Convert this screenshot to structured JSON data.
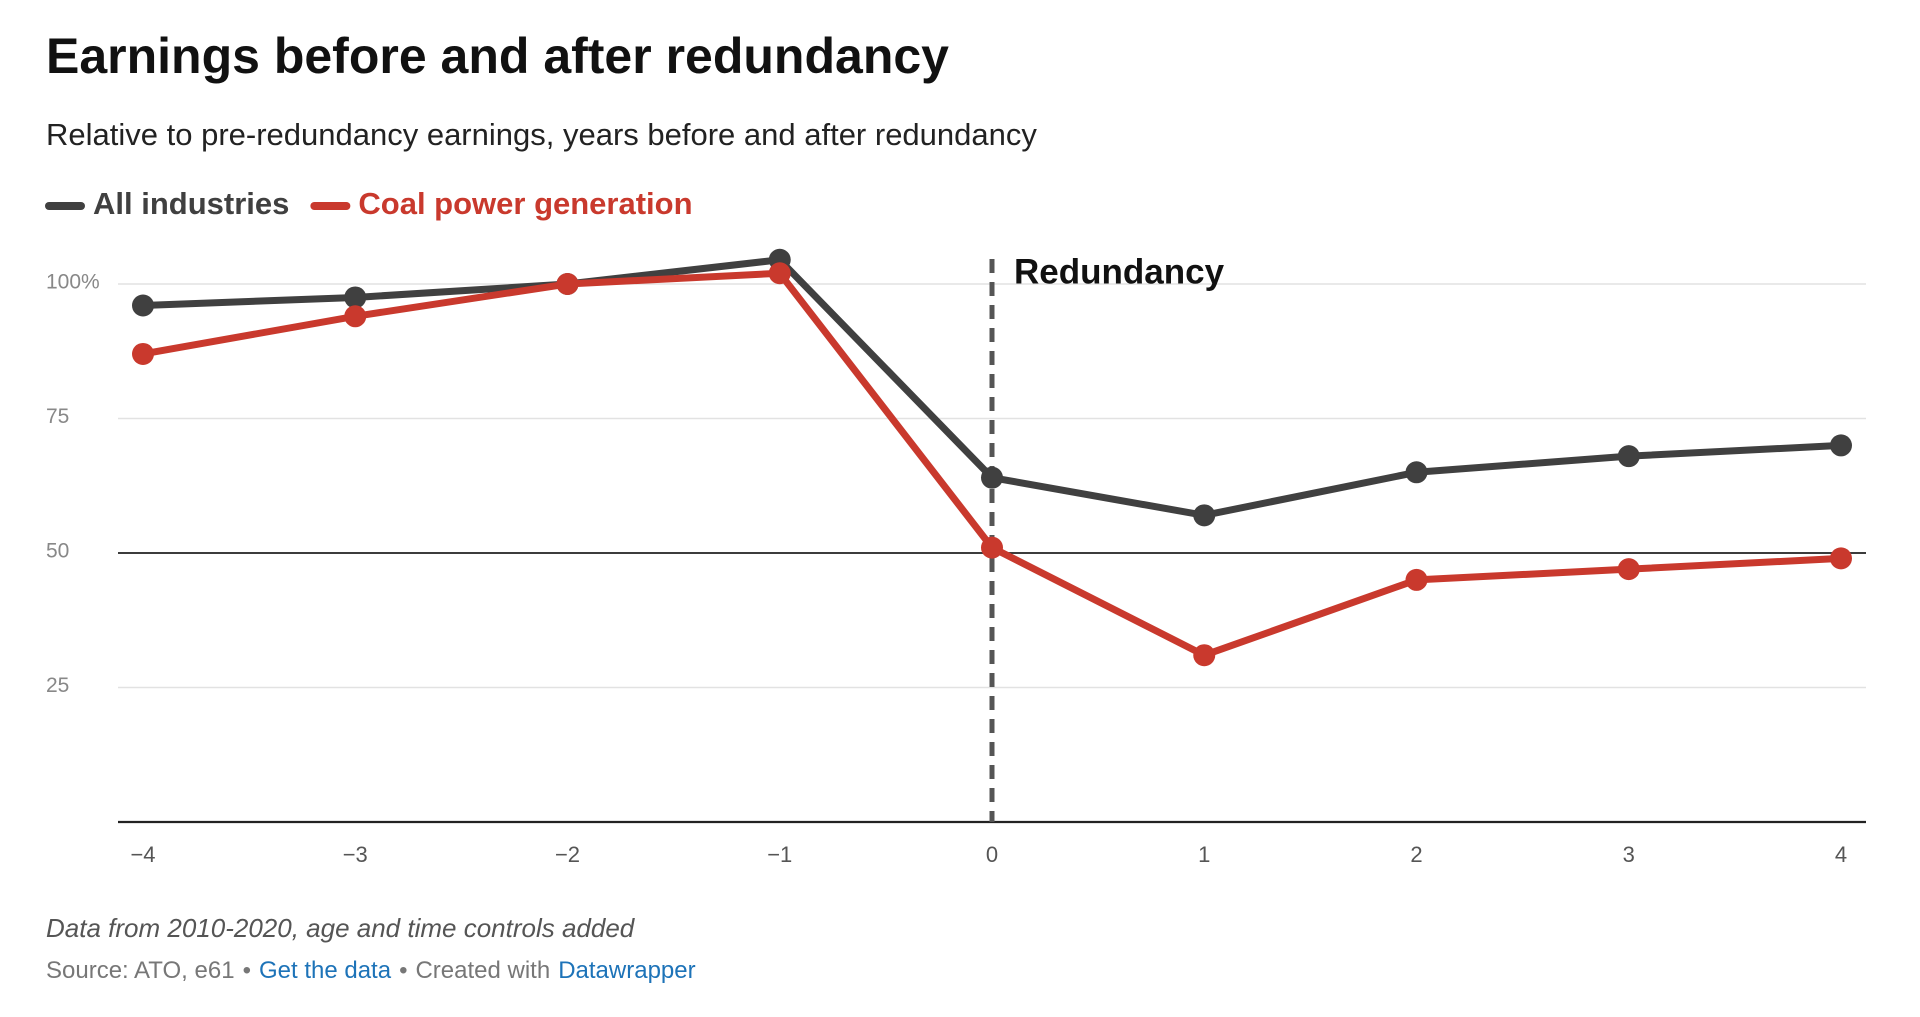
{
  "chart_data": {
    "type": "line",
    "title": "Earnings before and after redundancy",
    "subtitle": "Relative to pre-redundancy earnings, years before and after redundancy",
    "x": [
      -4,
      -3,
      -2,
      -1,
      0,
      1,
      2,
      3,
      4
    ],
    "xlim": [
      -4,
      4
    ],
    "xticks": [
      {
        "value": -4,
        "label": "−4"
      },
      {
        "value": -3,
        "label": "−3"
      },
      {
        "value": -2,
        "label": "−2"
      },
      {
        "value": -1,
        "label": "−1"
      },
      0,
      1,
      2,
      3,
      4
    ],
    "ylim": [
      0,
      100
    ],
    "yticks": [
      25,
      50,
      75,
      {
        "value": 100,
        "label": "100%"
      }
    ],
    "grid": true,
    "reference_line": 50,
    "series": [
      {
        "name": "All industries",
        "color": "#404040",
        "values": [
          96,
          97.5,
          100,
          104.5,
          64,
          57,
          65,
          68,
          70
        ]
      },
      {
        "name": "Coal power generation",
        "color": "#c9392d",
        "values": [
          87,
          94,
          100,
          102,
          51,
          31,
          45,
          47,
          49
        ]
      }
    ],
    "annotation": {
      "x": 0,
      "label": "Redundancy"
    },
    "note": "Data from 2010-2020, age and time controls added",
    "source": "Source: ATO, e61",
    "get_data": "Get the data",
    "created_with": "Created with",
    "tool": "Datawrapper"
  }
}
